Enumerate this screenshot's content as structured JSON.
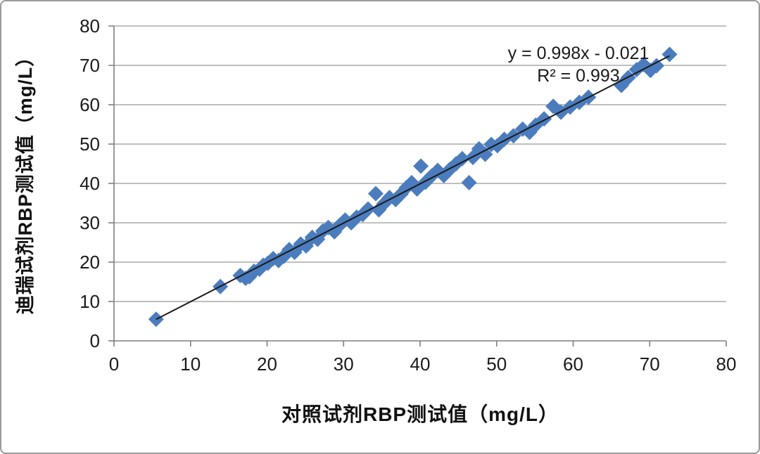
{
  "figure": {
    "background": "#ffffff",
    "border_color": "#9b9b9b"
  },
  "chart_data": {
    "type": "scatter",
    "title": "",
    "xlabel": "对照试剂RBP测试值（mg/L）",
    "ylabel": "迪瑞试剂RBP测试值（mg/L）",
    "xlim": [
      0,
      80
    ],
    "ylim": [
      0,
      80
    ],
    "xticks": [
      0,
      10,
      20,
      30,
      40,
      50,
      60,
      70,
      80
    ],
    "yticks": [
      0,
      10,
      20,
      30,
      40,
      50,
      60,
      70,
      80
    ],
    "grid": "horizontal-only",
    "legend": "none",
    "colors": {
      "marker": "#4b7cbd",
      "trendline": "#1a1a1a",
      "gridline": "#999999",
      "axis": "#7f7f7f",
      "tick_label": "#1a1a1a"
    },
    "annotation": {
      "equation": "y = 0.998x - 0.021",
      "r_squared": "R² = 0.993"
    },
    "trendline": {
      "slope": 0.998,
      "intercept": -0.021,
      "x_start": 5.5,
      "x_end": 72.6
    },
    "series": [
      {
        "name": "RBP",
        "marker": "diamond",
        "points": [
          [
            5.5,
            5.5
          ],
          [
            13.9,
            13.8
          ],
          [
            16.5,
            16.6
          ],
          [
            17.2,
            15.9
          ],
          [
            17.7,
            16.3
          ],
          [
            18.3,
            17.7
          ],
          [
            19.0,
            18.2
          ],
          [
            19.5,
            19.2
          ],
          [
            20.1,
            19.7
          ],
          [
            20.8,
            20.9
          ],
          [
            21.5,
            20.4
          ],
          [
            22.2,
            21.5
          ],
          [
            22.9,
            23.2
          ],
          [
            23.6,
            22.5
          ],
          [
            24.4,
            24.6
          ],
          [
            25.1,
            24.1
          ],
          [
            25.9,
            26.3
          ],
          [
            26.6,
            25.8
          ],
          [
            27.3,
            27.9
          ],
          [
            28.0,
            28.8
          ],
          [
            28.8,
            27.7
          ],
          [
            29.5,
            29.4
          ],
          [
            30.2,
            30.7
          ],
          [
            31.0,
            30.0
          ],
          [
            31.7,
            31.4
          ],
          [
            32.5,
            32.1
          ],
          [
            33.2,
            33.5
          ],
          [
            34.2,
            37.4
          ],
          [
            34.6,
            33.3
          ],
          [
            35.3,
            34.9
          ],
          [
            36.0,
            36.4
          ],
          [
            36.8,
            35.9
          ],
          [
            37.5,
            37.3
          ],
          [
            38.2,
            38.9
          ],
          [
            38.9,
            40.2
          ],
          [
            39.6,
            38.6
          ],
          [
            40.1,
            44.4
          ],
          [
            40.7,
            40.3
          ],
          [
            41.5,
            41.9
          ],
          [
            42.3,
            43.3
          ],
          [
            43.1,
            42.0
          ],
          [
            43.9,
            43.6
          ],
          [
            44.7,
            45.0
          ],
          [
            45.5,
            46.3
          ],
          [
            46.4,
            40.2
          ],
          [
            46.9,
            46.6
          ],
          [
            47.7,
            48.8
          ],
          [
            48.5,
            47.4
          ],
          [
            49.3,
            49.9
          ],
          [
            50.1,
            49.6
          ],
          [
            51.0,
            51.2
          ],
          [
            52.2,
            52.1
          ],
          [
            53.4,
            53.8
          ],
          [
            54.3,
            53.0
          ],
          [
            55.1,
            54.8
          ],
          [
            56.2,
            56.4
          ],
          [
            57.4,
            59.6
          ],
          [
            58.4,
            58.1
          ],
          [
            59.6,
            59.4
          ],
          [
            60.8,
            60.6
          ],
          [
            62.0,
            61.9
          ],
          [
            66.3,
            64.9
          ],
          [
            67.2,
            66.9
          ],
          [
            68.3,
            68.9
          ],
          [
            69.2,
            70.2
          ],
          [
            70.1,
            68.7
          ],
          [
            70.9,
            69.9
          ],
          [
            72.6,
            72.8
          ]
        ]
      }
    ]
  }
}
